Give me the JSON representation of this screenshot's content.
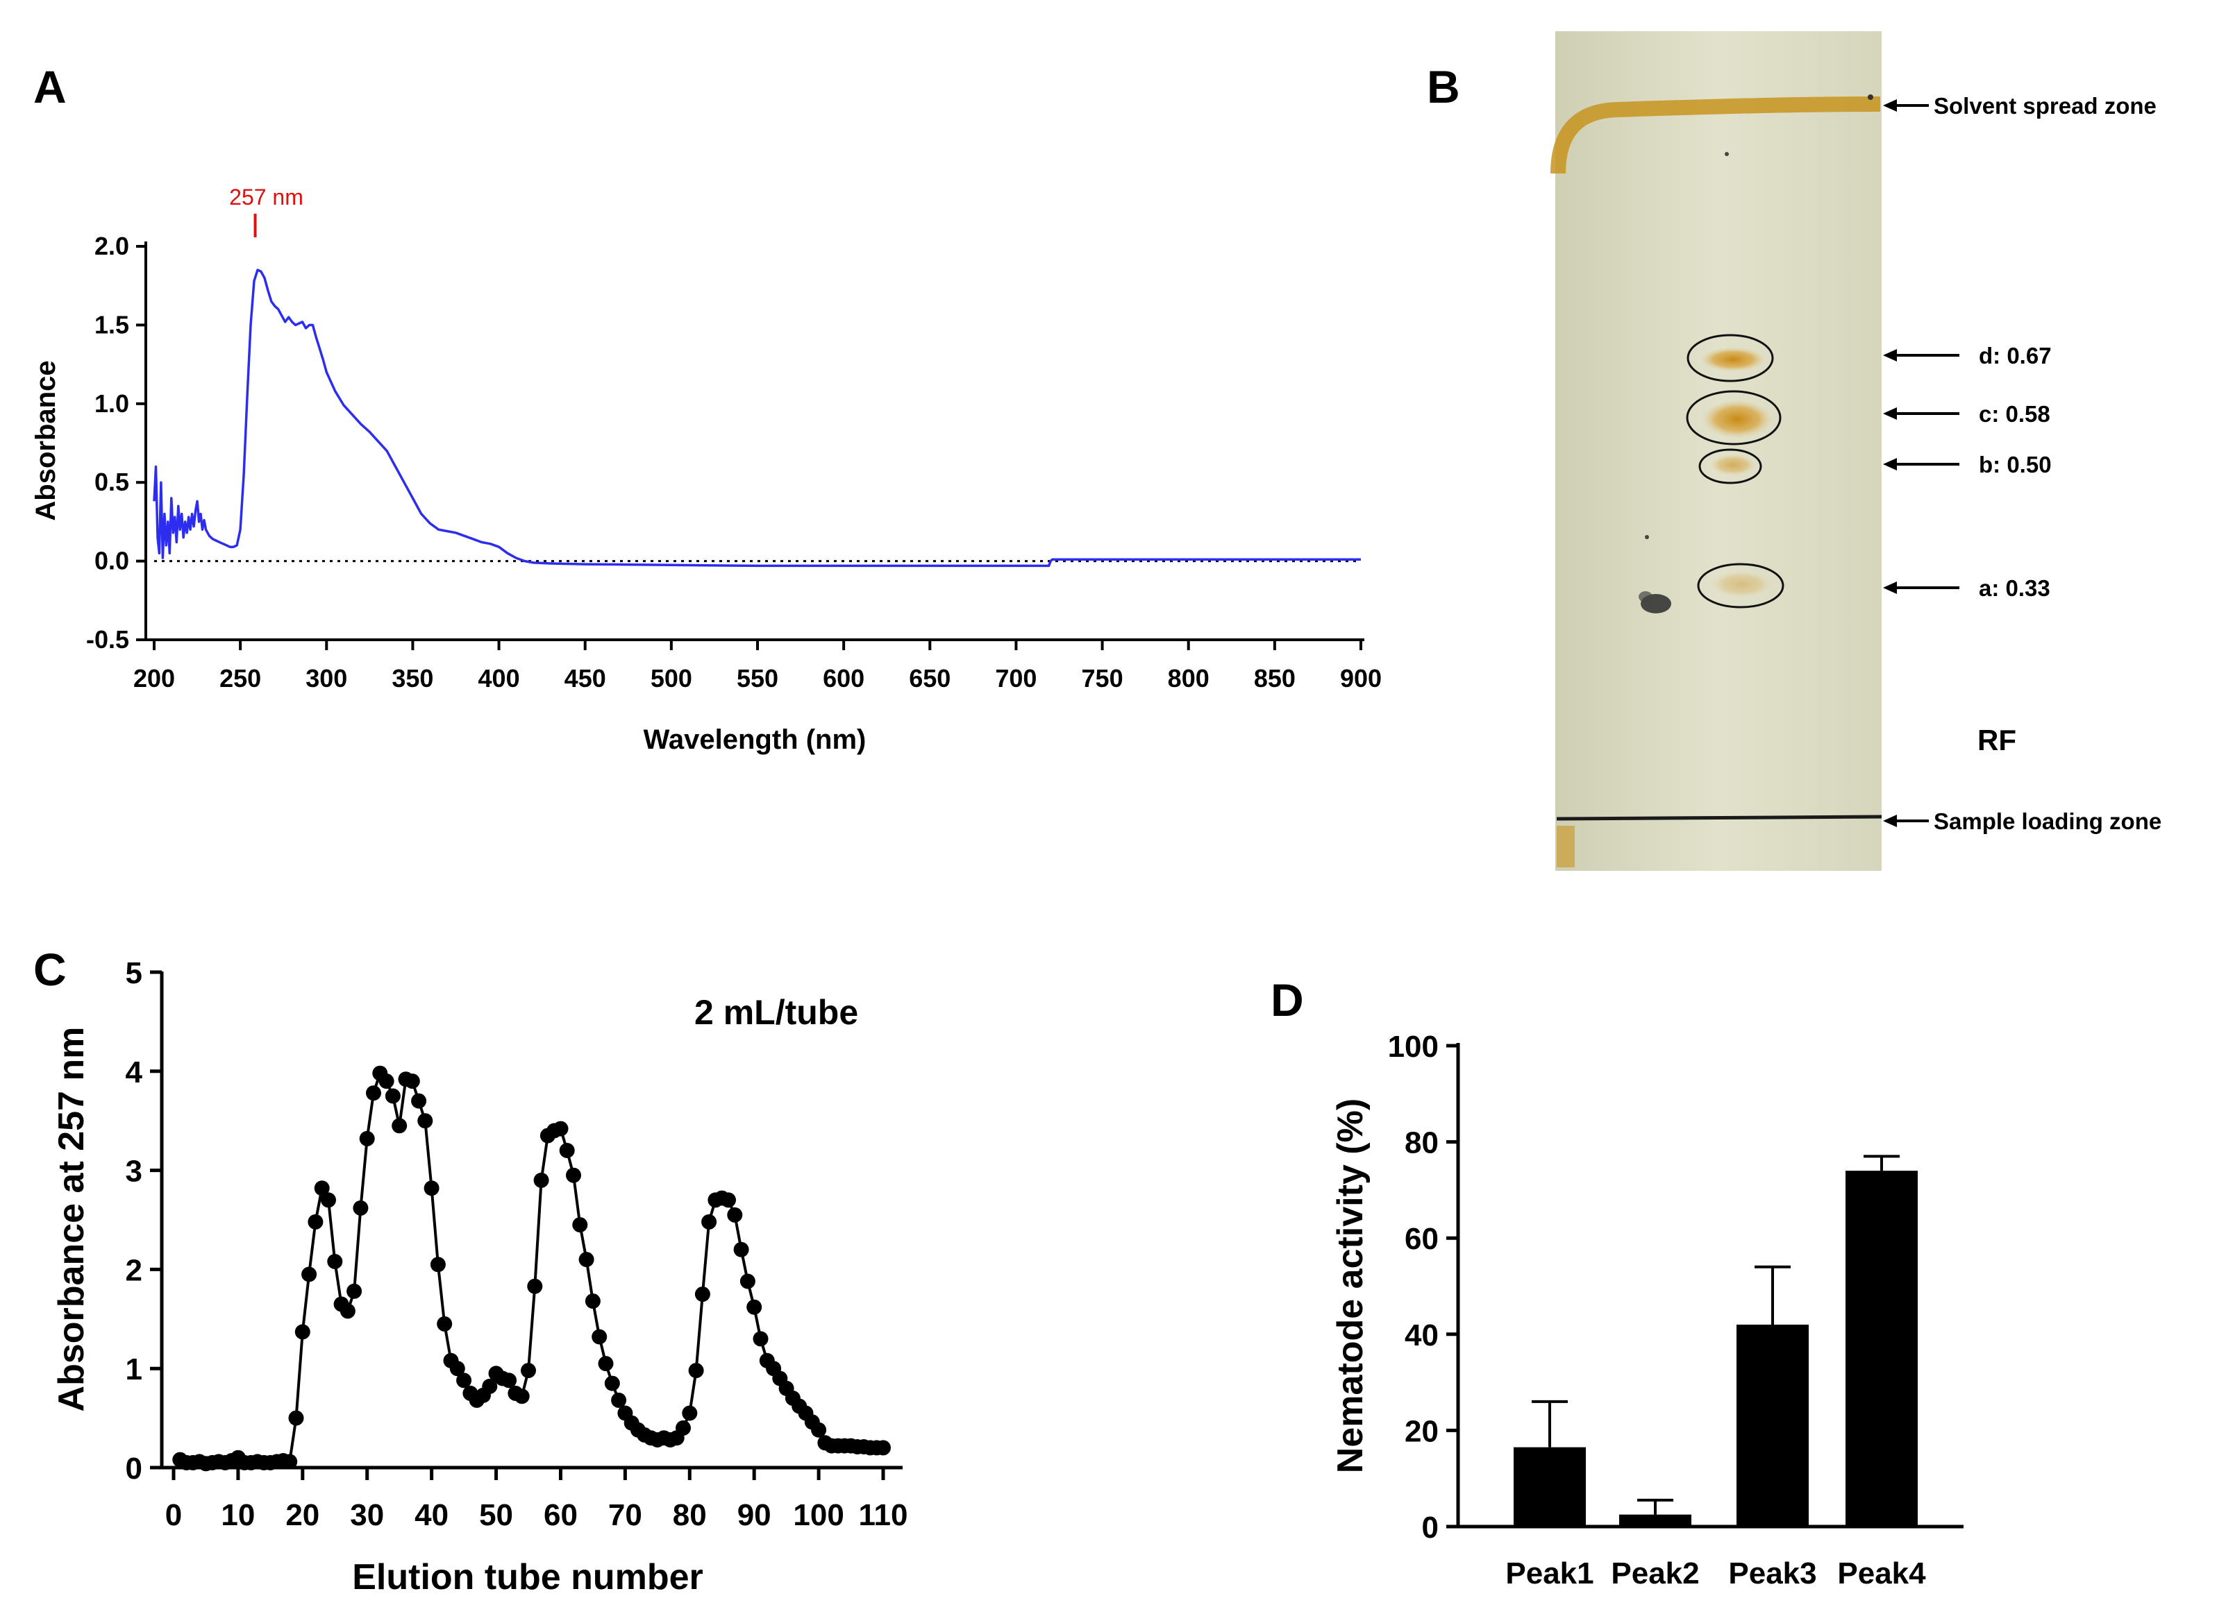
{
  "colors": {
    "spectrum": "#2d2df0",
    "peak_label": "#e01010",
    "axis": "#000000",
    "tlc_plate": "#dcdcc4",
    "solvent_front": "#c8941e"
  },
  "panels": {
    "a": {
      "letter": "A",
      "chart_data": {
        "type": "line",
        "title": "",
        "xlabel": "Wavelength (nm)",
        "ylabel": "Absorbance",
        "xlim": [
          200,
          900
        ],
        "ylim": [
          -0.5,
          2.0
        ],
        "xticks": [
          "200",
          "250",
          "300",
          "350",
          "400",
          "450",
          "500",
          "550",
          "600",
          "650",
          "700",
          "750",
          "800",
          "850",
          "900"
        ],
        "yticks": [
          "-0.5",
          "0.0",
          "0.5",
          "1.0",
          "1.5",
          "2.0"
        ],
        "baseline": 0.0,
        "annotation": {
          "text": "257 nm",
          "x": 257
        },
        "series": [
          {
            "name": "spectrum",
            "x": [
              200,
              201,
              202,
              203,
              204,
              205,
              206,
              207,
              208,
              209,
              210,
              211,
              212,
              213,
              214,
              215,
              216,
              217,
              218,
              219,
              220,
              221,
              222,
              223,
              224,
              225,
              226,
              227,
              228,
              229,
              230,
              232,
              234,
              236,
              238,
              240,
              242,
              244,
              246,
              248,
              250,
              252,
              254,
              256,
              258,
              260,
              262,
              264,
              266,
              268,
              270,
              272,
              274,
              276,
              278,
              280,
              282,
              284,
              286,
              288,
              290,
              292,
              294,
              296,
              298,
              300,
              305,
              310,
              315,
              320,
              325,
              330,
              335,
              340,
              345,
              350,
              355,
              360,
              365,
              370,
              375,
              380,
              385,
              390,
              395,
              400,
              405,
              410,
              415,
              420,
              430,
              450,
              500,
              550,
              600,
              650,
              700,
              719,
              720,
              721,
              722,
              750,
              800,
              850,
              900
            ],
            "y": [
              0.38,
              0.6,
              0.15,
              0.05,
              0.5,
              0.02,
              0.3,
              0.1,
              0.25,
              0.05,
              0.4,
              0.18,
              0.28,
              0.12,
              0.35,
              0.2,
              0.3,
              0.15,
              0.25,
              0.18,
              0.28,
              0.2,
              0.3,
              0.22,
              0.32,
              0.38,
              0.25,
              0.3,
              0.2,
              0.26,
              0.2,
              0.16,
              0.14,
              0.13,
              0.12,
              0.11,
              0.1,
              0.09,
              0.09,
              0.1,
              0.2,
              0.55,
              1.05,
              1.5,
              1.78,
              1.85,
              1.84,
              1.8,
              1.72,
              1.65,
              1.62,
              1.6,
              1.56,
              1.52,
              1.55,
              1.52,
              1.5,
              1.51,
              1.52,
              1.48,
              1.5,
              1.5,
              1.42,
              1.35,
              1.28,
              1.2,
              1.08,
              0.99,
              0.93,
              0.87,
              0.82,
              0.76,
              0.7,
              0.6,
              0.5,
              0.4,
              0.3,
              0.24,
              0.2,
              0.19,
              0.18,
              0.16,
              0.14,
              0.12,
              0.11,
              0.09,
              0.05,
              0.02,
              0.0,
              -0.01,
              -0.015,
              -0.02,
              -0.025,
              -0.03,
              -0.03,
              -0.03,
              -0.03,
              -0.03,
              0.0,
              0.01,
              0.01,
              0.01,
              0.01,
              0.01,
              0.01
            ]
          }
        ]
      }
    },
    "b": {
      "letter": "B",
      "labels": {
        "solvent": "Solvent spread zone",
        "d": "d: 0.67",
        "c": "c: 0.58",
        "b": "b: 0.50",
        "a": "a: 0.33",
        "rf": "RF",
        "sample": "Sample loading zone"
      }
    },
    "c": {
      "letter": "C",
      "chart_data": {
        "type": "line",
        "title": "",
        "xlabel": "Elution tube number",
        "ylabel": "Absorbance at 257 nm",
        "annotation": "2 mL/tube",
        "xlim": [
          0,
          110
        ],
        "ylim": [
          0,
          5
        ],
        "xticks": [
          "0",
          "10",
          "20",
          "30",
          "40",
          "50",
          "60",
          "70",
          "80",
          "90",
          "100",
          "110"
        ],
        "yticks": [
          "0",
          "1",
          "2",
          "3",
          "4",
          "5"
        ],
        "series": [
          {
            "name": "absorbance",
            "x": [
              1,
              2,
              3,
              4,
              5,
              6,
              7,
              8,
              9,
              10,
              11,
              12,
              13,
              14,
              15,
              16,
              17,
              18,
              19,
              20,
              21,
              22,
              23,
              24,
              25,
              26,
              27,
              28,
              29,
              30,
              31,
              32,
              33,
              34,
              35,
              36,
              37,
              38,
              39,
              40,
              41,
              42,
              43,
              44,
              45,
              46,
              47,
              48,
              49,
              50,
              51,
              52,
              53,
              54,
              55,
              56,
              57,
              58,
              59,
              60,
              61,
              62,
              63,
              64,
              65,
              66,
              67,
              68,
              69,
              70,
              71,
              72,
              73,
              74,
              75,
              76,
              77,
              78,
              79,
              80,
              81,
              82,
              83,
              84,
              85,
              86,
              87,
              88,
              89,
              90,
              91,
              92,
              93,
              94,
              95,
              96,
              97,
              98,
              99,
              100,
              101,
              102,
              103,
              104,
              105,
              106,
              107,
              108,
              109,
              110
            ],
            "y": [
              0.08,
              0.05,
              0.05,
              0.06,
              0.04,
              0.05,
              0.06,
              0.05,
              0.07,
              0.1,
              0.05,
              0.05,
              0.06,
              0.05,
              0.05,
              0.06,
              0.07,
              0.06,
              0.5,
              1.37,
              1.95,
              2.48,
              2.82,
              2.7,
              2.08,
              1.65,
              1.58,
              1.78,
              2.62,
              3.32,
              3.78,
              3.98,
              3.9,
              3.75,
              3.45,
              3.92,
              3.9,
              3.7,
              3.5,
              2.82,
              2.05,
              1.45,
              1.08,
              1.0,
              0.88,
              0.75,
              0.68,
              0.73,
              0.82,
              0.95,
              0.9,
              0.88,
              0.75,
              0.72,
              0.98,
              1.83,
              2.9,
              3.35,
              3.4,
              3.42,
              3.2,
              2.95,
              2.45,
              2.1,
              1.68,
              1.32,
              1.05,
              0.85,
              0.68,
              0.55,
              0.45,
              0.38,
              0.33,
              0.3,
              0.28,
              0.3,
              0.28,
              0.3,
              0.4,
              0.55,
              0.98,
              1.75,
              2.48,
              2.7,
              2.72,
              2.7,
              2.55,
              2.2,
              1.88,
              1.62,
              1.3,
              1.08,
              1.0,
              0.9,
              0.8,
              0.7,
              0.62,
              0.55,
              0.46,
              0.38,
              0.25,
              0.22,
              0.22,
              0.22,
              0.22,
              0.21,
              0.21,
              0.2,
              0.2,
              0.2
            ]
          }
        ]
      }
    },
    "d": {
      "letter": "D",
      "chart_data": {
        "type": "bar",
        "title": "",
        "xlabel": "",
        "ylabel": "Nematode activity (%)",
        "ylim": [
          0,
          100
        ],
        "yticks": [
          "0",
          "20",
          "40",
          "60",
          "80",
          "100"
        ],
        "categories": [
          "Peak1",
          "Peak2",
          "Peak3",
          "Peak4"
        ],
        "values": [
          16.5,
          2.5,
          42,
          74
        ],
        "errors": [
          9.5,
          3,
          12,
          3
        ]
      }
    }
  }
}
